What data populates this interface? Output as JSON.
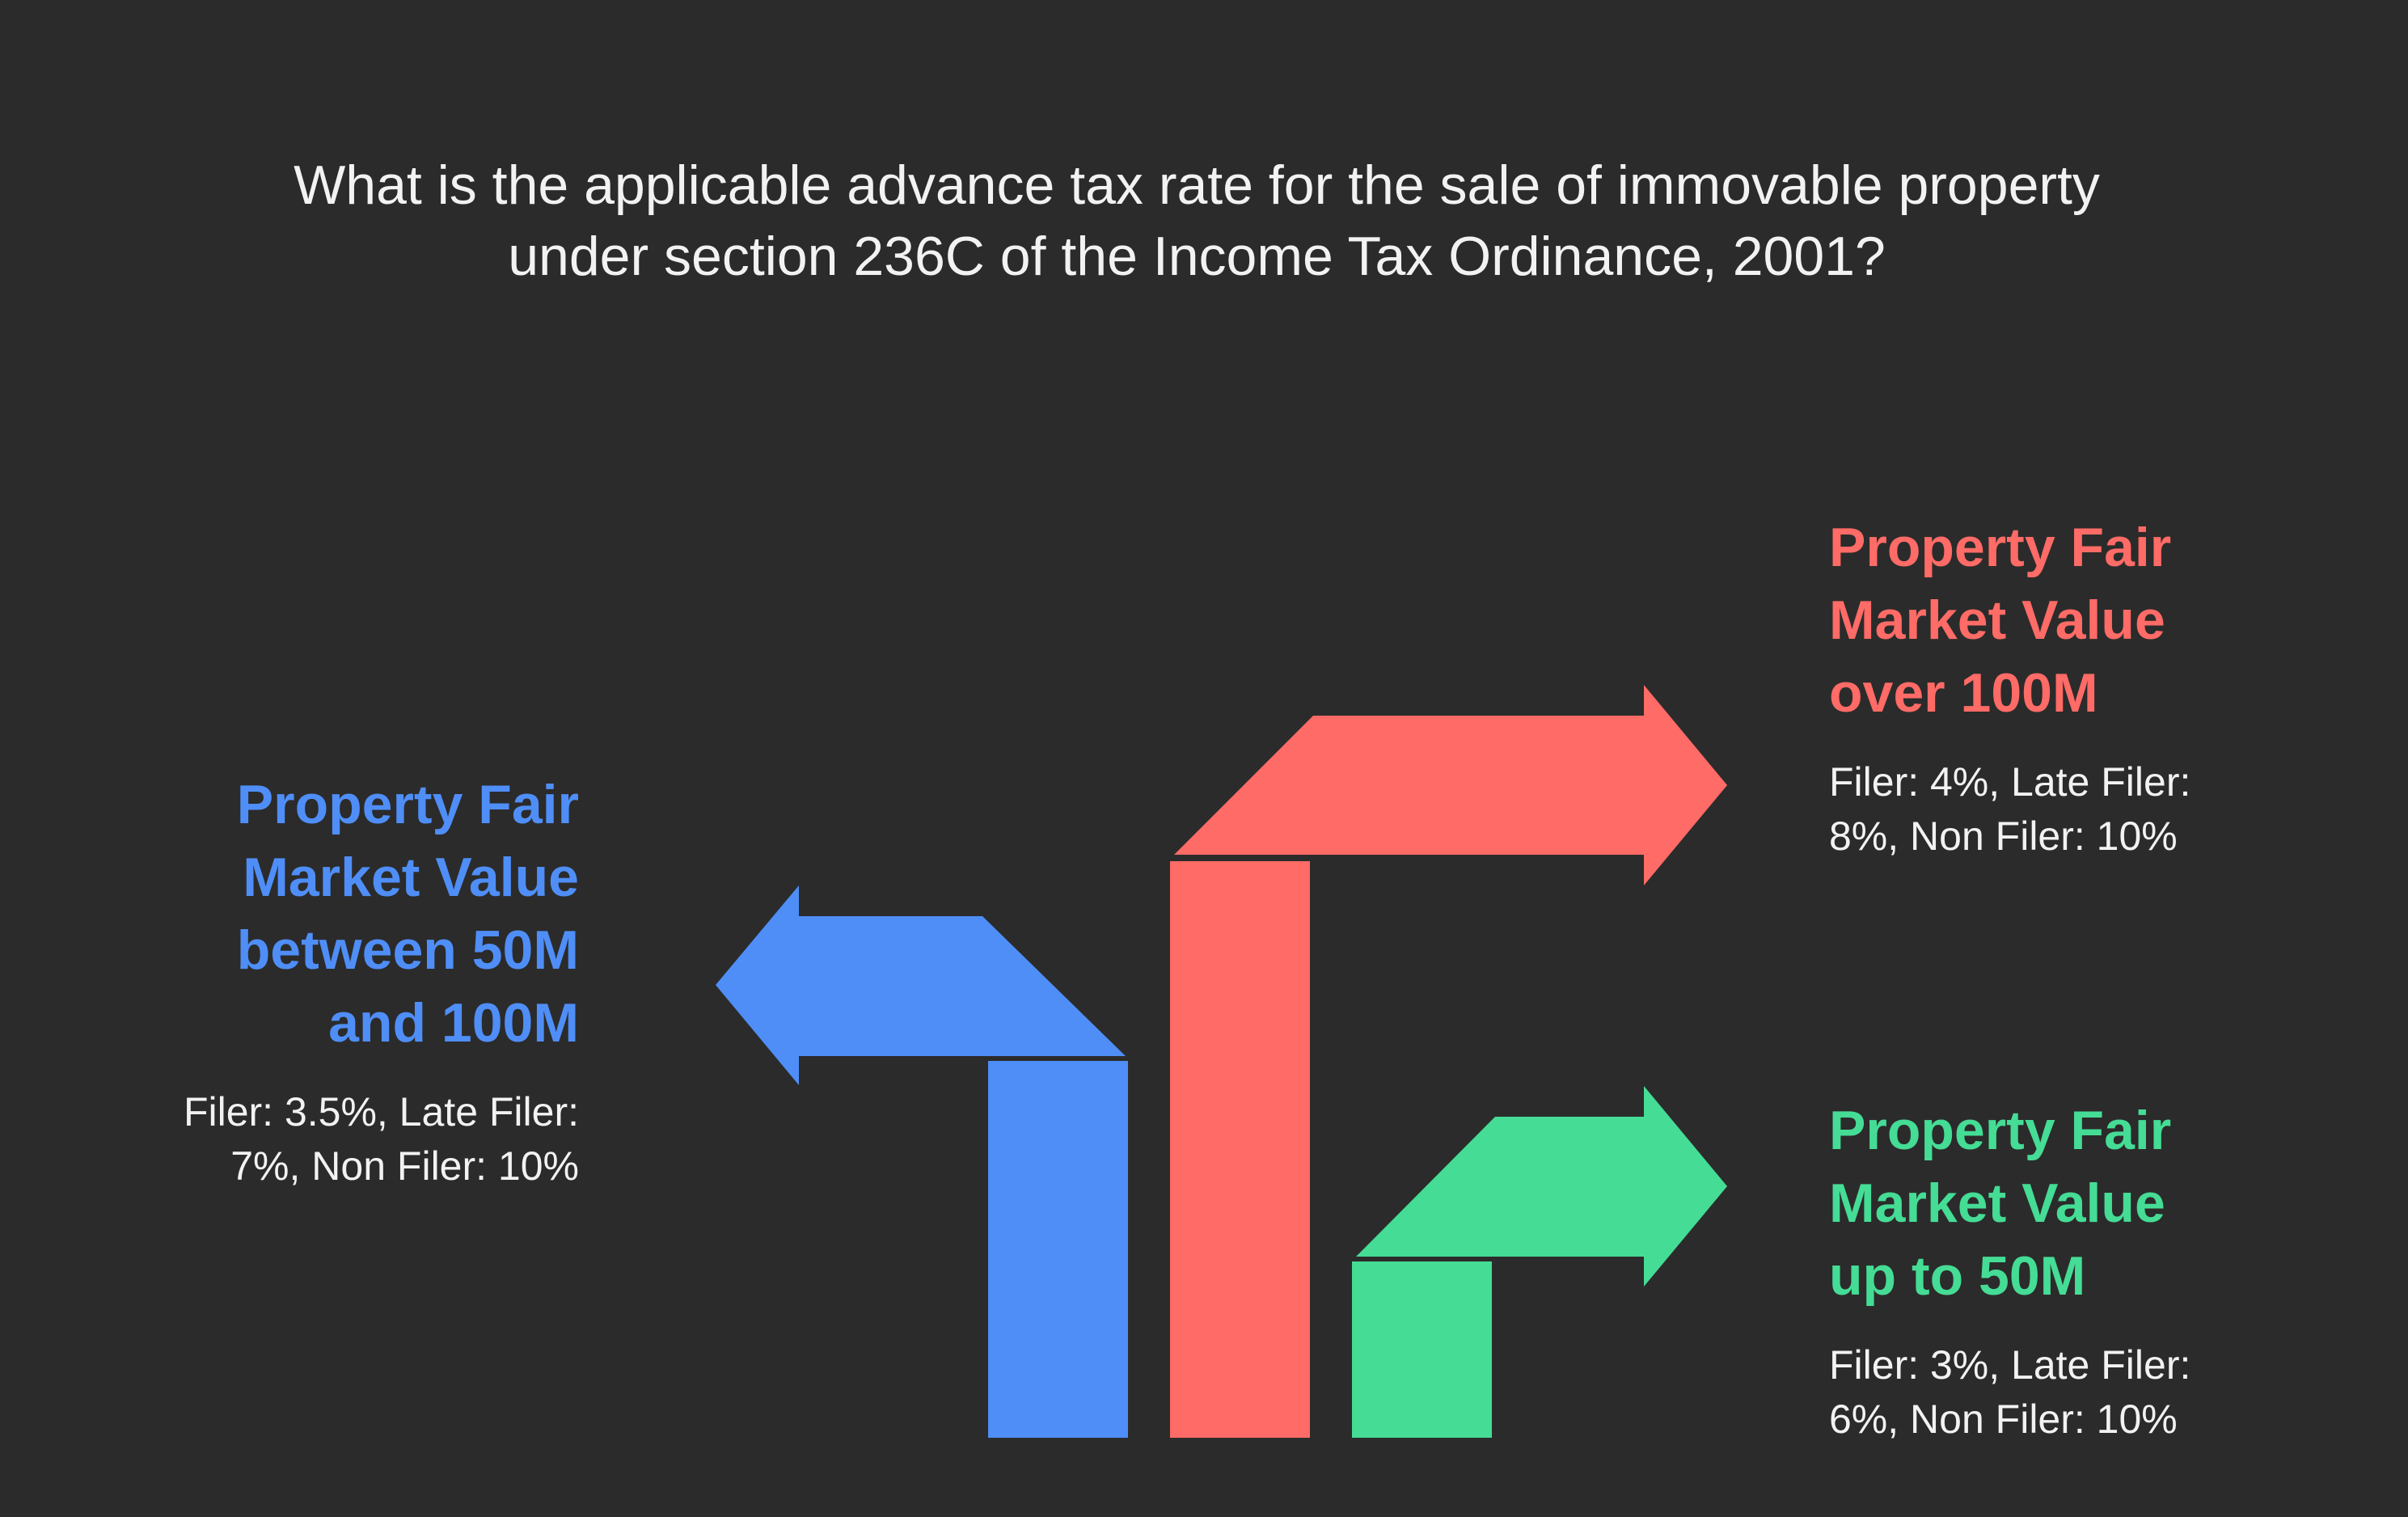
{
  "question": {
    "line1": "What is the applicable advance tax rate for the sale of immovable property",
    "line2": "under section 236C of the Income Tax Ordinance, 2001?"
  },
  "options": {
    "mid": {
      "heading": [
        "Property Fair",
        "Market Value",
        "between 50M",
        "and 100M"
      ],
      "detail": [
        "Filer: 3.5%, Late Filer:",
        "7%, Non Filer: 10%"
      ],
      "color": "#4f8ef7"
    },
    "high": {
      "heading": [
        "Property Fair",
        "Market Value",
        "over 100M"
      ],
      "detail": [
        "Filer: 4%, Late Filer:",
        "8%, Non Filer: 10%"
      ],
      "color": "#ff6b66"
    },
    "low": {
      "heading": [
        "Property Fair",
        "Market Value",
        "up to 50M"
      ],
      "detail": [
        "Filer: 3%, Late Filer:",
        "6%, Non Filer: 10%"
      ],
      "color": "#45dc95"
    }
  },
  "colors": {
    "background": "#2b2b2b",
    "text": "#f2f2f2"
  }
}
